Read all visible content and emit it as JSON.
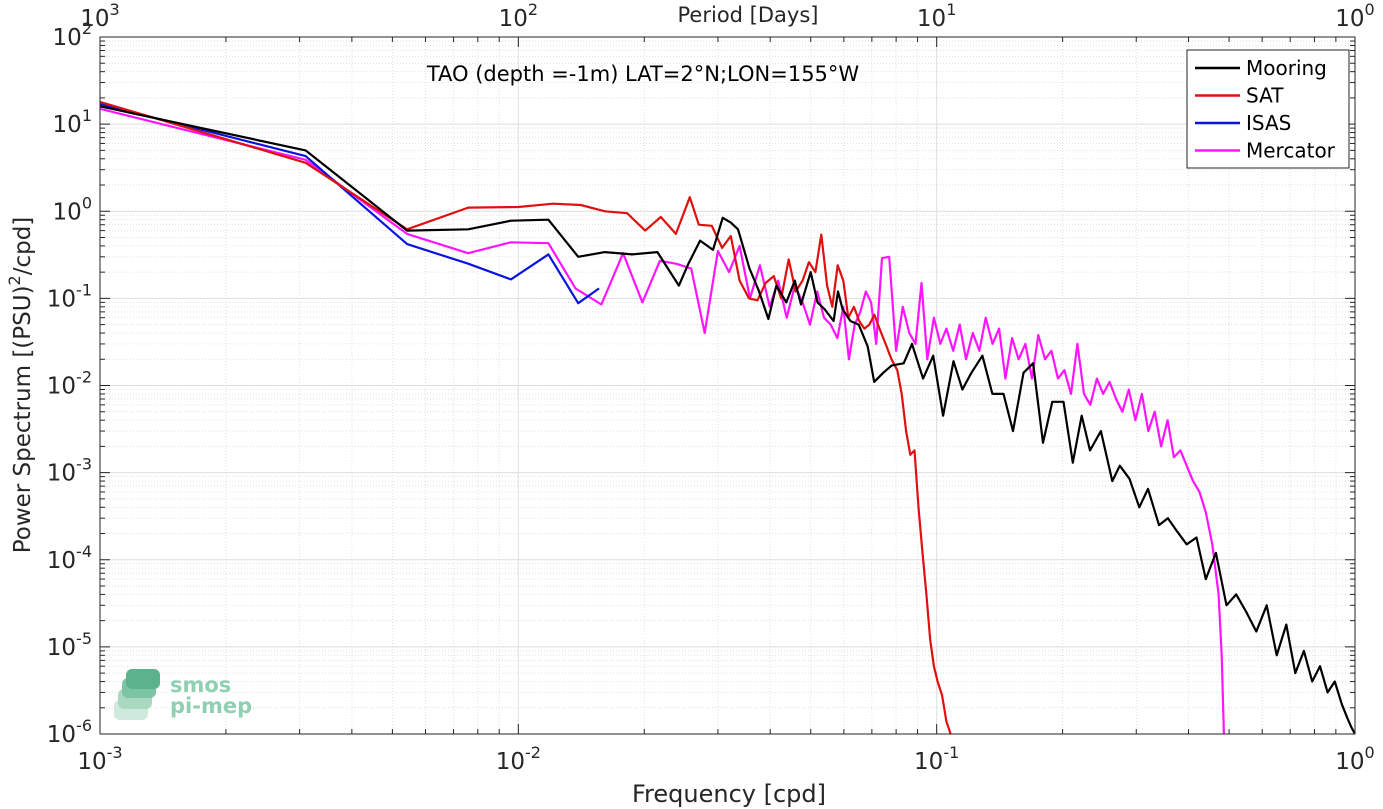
{
  "chart_data": {
    "type": "line",
    "title": "TAO (depth =-1m) LAT=2°N;LON=155°W",
    "xlabel": "Frequency [cpd]",
    "x2label": "Period [Days]",
    "ylabel": "Power Spectrum [(PSU)^2/cpd]",
    "x_scale": "log",
    "y_scale": "log",
    "xlim": [
      0.001,
      1
    ],
    "ylim": [
      1e-06,
      100
    ],
    "grid": true,
    "legend_position": "top-right",
    "x_ticks": [
      {
        "value": 0.001,
        "base": "10",
        "exp": "-3"
      },
      {
        "value": 0.01,
        "base": "10",
        "exp": "-2"
      },
      {
        "value": 0.1,
        "base": "10",
        "exp": "-1"
      },
      {
        "value": 1,
        "base": "10",
        "exp": "0"
      }
    ],
    "top_ticks": [
      {
        "value": 0.001,
        "base": "10",
        "exp": "3"
      },
      {
        "value": 0.01,
        "base": "10",
        "exp": "2"
      },
      {
        "value": 0.1,
        "base": "10",
        "exp": "1"
      },
      {
        "value": 1,
        "base": "10",
        "exp": "0"
      }
    ],
    "y_ticks": [
      {
        "value": 100,
        "base": "10",
        "exp": "2"
      },
      {
        "value": 10,
        "base": "10",
        "exp": "1"
      },
      {
        "value": 1,
        "base": "10",
        "exp": "0"
      },
      {
        "value": 0.1,
        "base": "10",
        "exp": "-1"
      },
      {
        "value": 0.01,
        "base": "10",
        "exp": "-2"
      },
      {
        "value": 0.001,
        "base": "10",
        "exp": "-3"
      },
      {
        "value": 0.0001,
        "base": "10",
        "exp": "-4"
      },
      {
        "value": 1e-05,
        "base": "10",
        "exp": "-5"
      },
      {
        "value": 1e-06,
        "base": "10",
        "exp": "-6"
      }
    ],
    "series": [
      {
        "name": "Mooring",
        "color": "#000000",
        "x": [
          0.001,
          0.0031,
          0.00542,
          0.00759,
          0.0096,
          0.0118,
          0.0139,
          0.0161,
          0.0187,
          0.0215,
          0.0242,
          0.0255,
          0.0272,
          0.0292,
          0.0308,
          0.0322,
          0.0335,
          0.0357,
          0.0375,
          0.0396,
          0.0414,
          0.0437,
          0.0458,
          0.0474,
          0.05,
          0.0519,
          0.054,
          0.0567,
          0.0581,
          0.0596,
          0.0622,
          0.0651,
          0.0684,
          0.0709,
          0.0745,
          0.0781,
          0.0834,
          0.0873,
          0.0928,
          0.0981,
          0.1036,
          0.1097,
          0.1152,
          0.1211,
          0.1286,
          0.1359,
          0.1445,
          0.1522,
          0.1613,
          0.17,
          0.1795,
          0.189,
          0.201,
          0.2116,
          0.2222,
          0.2326,
          0.2469,
          0.263,
          0.274,
          0.289,
          0.305,
          0.32,
          0.34,
          0.357,
          0.376,
          0.396,
          0.418,
          0.44,
          0.465,
          0.493,
          0.52,
          0.55,
          0.581,
          0.615,
          0.65,
          0.685,
          0.72,
          0.755,
          0.79,
          0.825,
          0.86,
          0.895,
          0.93,
          0.96,
          0.98,
          1.0
        ],
        "y": [
          16.0,
          5.0,
          0.6,
          0.62,
          0.78,
          0.8,
          0.3,
          0.34,
          0.32,
          0.34,
          0.14,
          0.25,
          0.46,
          0.36,
          0.84,
          0.74,
          0.62,
          0.22,
          0.125,
          0.058,
          0.14,
          0.09,
          0.16,
          0.085,
          0.2,
          0.09,
          0.075,
          0.055,
          0.12,
          0.075,
          0.055,
          0.05,
          0.028,
          0.011,
          0.014,
          0.017,
          0.018,
          0.03,
          0.012,
          0.022,
          0.0045,
          0.019,
          0.009,
          0.014,
          0.022,
          0.008,
          0.008,
          0.003,
          0.014,
          0.018,
          0.0022,
          0.0065,
          0.0065,
          0.0013,
          0.0045,
          0.0018,
          0.003,
          0.0008,
          0.0012,
          0.00085,
          0.0004,
          0.00065,
          0.00025,
          0.0003,
          0.00021,
          0.00015,
          0.00018,
          6e-05,
          0.00012,
          3e-05,
          4e-05,
          2.5e-05,
          1.5e-05,
          3e-05,
          8e-06,
          1.8e-05,
          5e-06,
          9e-06,
          4e-06,
          6e-06,
          3e-06,
          4e-06,
          2.2e-06,
          1.5e-06,
          1.2e-06,
          1e-06
        ]
      },
      {
        "name": "SAT",
        "color": "#e01010",
        "x": [
          0.001,
          0.0031,
          0.00542,
          0.00759,
          0.01,
          0.0121,
          0.0141,
          0.0161,
          0.0182,
          0.0201,
          0.0219,
          0.0238,
          0.0257,
          0.027,
          0.029,
          0.0307,
          0.0322,
          0.0338,
          0.0356,
          0.0373,
          0.039,
          0.0408,
          0.0425,
          0.0443,
          0.046,
          0.0478,
          0.0495,
          0.0513,
          0.053,
          0.0547,
          0.0563,
          0.058,
          0.0598,
          0.0615,
          0.0634,
          0.0653,
          0.0672,
          0.069,
          0.071,
          0.073,
          0.0755,
          0.078,
          0.0805,
          0.0825,
          0.0845,
          0.0865,
          0.0885,
          0.0905,
          0.0925,
          0.0945,
          0.0965,
          0.0985,
          0.1005,
          0.103,
          0.1055,
          0.108
        ],
        "y": [
          18.0,
          3.6,
          0.62,
          1.1,
          1.12,
          1.22,
          1.18,
          1.0,
          0.95,
          0.6,
          0.86,
          0.55,
          1.45,
          0.7,
          0.68,
          0.38,
          0.52,
          0.16,
          0.1,
          0.095,
          0.15,
          0.18,
          0.1,
          0.28,
          0.12,
          0.16,
          0.26,
          0.2,
          0.54,
          0.14,
          0.08,
          0.24,
          0.16,
          0.06,
          0.08,
          0.055,
          0.045,
          0.05,
          0.065,
          0.045,
          0.03,
          0.02,
          0.015,
          0.008,
          0.003,
          0.0016,
          0.0018,
          0.0004,
          0.00012,
          4e-05,
          1.2e-05,
          6e-06,
          4e-06,
          2.8e-06,
          1.4e-06,
          1e-06
        ]
      },
      {
        "name": "ISAS",
        "color": "#0a14e0",
        "x": [
          0.001,
          0.0031,
          0.00542,
          0.00759,
          0.0096,
          0.0118,
          0.0139,
          0.0156
        ],
        "y": [
          17.0,
          4.3,
          0.42,
          0.25,
          0.165,
          0.32,
          0.088,
          0.13
        ]
      },
      {
        "name": "Mercator",
        "color": "#ff14ff",
        "x": [
          0.001,
          0.0031,
          0.00542,
          0.00759,
          0.0096,
          0.0118,
          0.0137,
          0.0158,
          0.0178,
          0.0198,
          0.0218,
          0.0238,
          0.0259,
          0.0279,
          0.03,
          0.0319,
          0.0338,
          0.0358,
          0.0378,
          0.0399,
          0.0418,
          0.0438,
          0.0458,
          0.0478,
          0.0498,
          0.0518,
          0.0538,
          0.0558,
          0.0579,
          0.0598,
          0.0617,
          0.0637,
          0.0657,
          0.0677,
          0.0697,
          0.0717,
          0.074,
          0.077,
          0.08,
          0.083,
          0.086,
          0.089,
          0.092,
          0.095,
          0.0985,
          0.102,
          0.1055,
          0.1095,
          0.1135,
          0.1175,
          0.122,
          0.1265,
          0.131,
          0.136,
          0.141,
          0.146,
          0.1515,
          0.157,
          0.163,
          0.169,
          0.175,
          0.1815,
          0.188,
          0.195,
          0.202,
          0.2095,
          0.217,
          0.225,
          0.233,
          0.2415,
          0.25,
          0.259,
          0.2685,
          0.278,
          0.288,
          0.2985,
          0.3095,
          0.3205,
          0.332,
          0.344,
          0.3565,
          0.369,
          0.3825,
          0.396,
          0.41,
          0.425,
          0.44,
          0.456,
          0.472,
          0.48,
          0.486
        ],
        "y": [
          15.0,
          3.9,
          0.55,
          0.33,
          0.44,
          0.43,
          0.13,
          0.085,
          0.33,
          0.09,
          0.27,
          0.25,
          0.22,
          0.04,
          0.35,
          0.2,
          0.4,
          0.1,
          0.24,
          0.08,
          0.16,
          0.06,
          0.14,
          0.09,
          0.05,
          0.12,
          0.06,
          0.05,
          0.035,
          0.08,
          0.02,
          0.05,
          0.07,
          0.12,
          0.09,
          0.03,
          0.29,
          0.3,
          0.025,
          0.08,
          0.04,
          0.03,
          0.15,
          0.02,
          0.06,
          0.03,
          0.045,
          0.025,
          0.05,
          0.02,
          0.04,
          0.025,
          0.06,
          0.03,
          0.045,
          0.012,
          0.035,
          0.02,
          0.03,
          0.012,
          0.038,
          0.02,
          0.025,
          0.012,
          0.015,
          0.008,
          0.03,
          0.008,
          0.006,
          0.012,
          0.008,
          0.011,
          0.007,
          0.005,
          0.009,
          0.004,
          0.008,
          0.003,
          0.005,
          0.002,
          0.004,
          0.0015,
          0.0018,
          0.0012,
          0.0008,
          0.0006,
          0.00035,
          0.00015,
          4e-05,
          8e-06,
          1e-06
        ]
      }
    ],
    "watermark": {
      "line1": "smos",
      "line2": "pi-mep"
    }
  }
}
